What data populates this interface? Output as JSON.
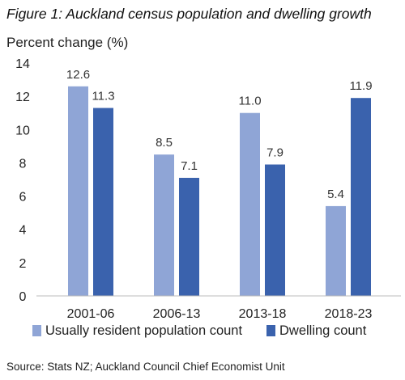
{
  "figure": {
    "title": "Figure 1: Auckland census population and dwelling growth",
    "source": "Source: Stats NZ; Auckland Council Chief Economist Unit"
  },
  "chart_data": {
    "type": "bar",
    "title": "Figure 1: Auckland census population and dwelling growth",
    "ylabel": "Percent change (%)",
    "xlabel": "",
    "categories": [
      "2001-06",
      "2006-13",
      "2013-18",
      "2018-23"
    ],
    "ylim": [
      0,
      14
    ],
    "yticks": [
      0,
      2,
      4,
      6,
      8,
      10,
      12,
      14
    ],
    "grid": false,
    "legend_position": "bottom",
    "series": [
      {
        "name": "Usually resident population count",
        "color": "#8fa5d6",
        "values": [
          12.6,
          8.5,
          11.0,
          5.4
        ],
        "labels": [
          "12.6",
          "8.5",
          "11.0",
          "5.4"
        ]
      },
      {
        "name": "Dwelling count",
        "color": "#3a62ad",
        "values": [
          11.3,
          7.1,
          7.9,
          11.9
        ],
        "labels": [
          "11.3",
          "7.1",
          "7.9",
          "11.9"
        ]
      }
    ]
  }
}
